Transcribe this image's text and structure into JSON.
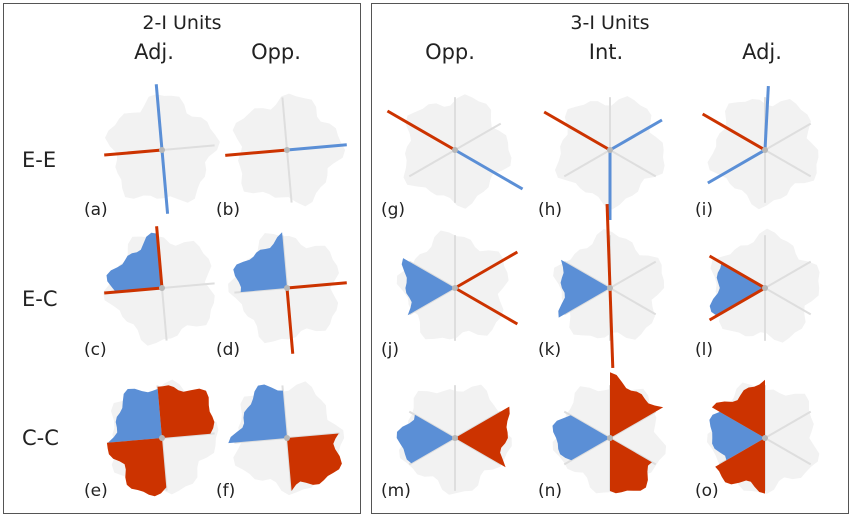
{
  "groups": [
    {
      "title": "2-I Units",
      "columns": [
        "Adj.",
        "Opp."
      ]
    },
    {
      "title": "3-I Units",
      "columns": [
        "Opp.",
        "Int.",
        "Adj."
      ]
    }
  ],
  "rows": [
    "E-E",
    "E-C",
    "C-C"
  ],
  "panels": {
    "a": "(a)",
    "b": "(b)",
    "c": "(c)",
    "d": "(d)",
    "e": "(e)",
    "f": "(f)",
    "g": "(g)",
    "h": "(h)",
    "i": "(i)",
    "j": "(j)",
    "k": "(k)",
    "l": "(l)",
    "m": "(m)",
    "n": "(n)",
    "o": "(o)"
  },
  "colors": {
    "red": "#cc3300",
    "blue": "#5b8fd6",
    "background_shape": "#f2f2f2",
    "spoke": "#dedede"
  }
}
